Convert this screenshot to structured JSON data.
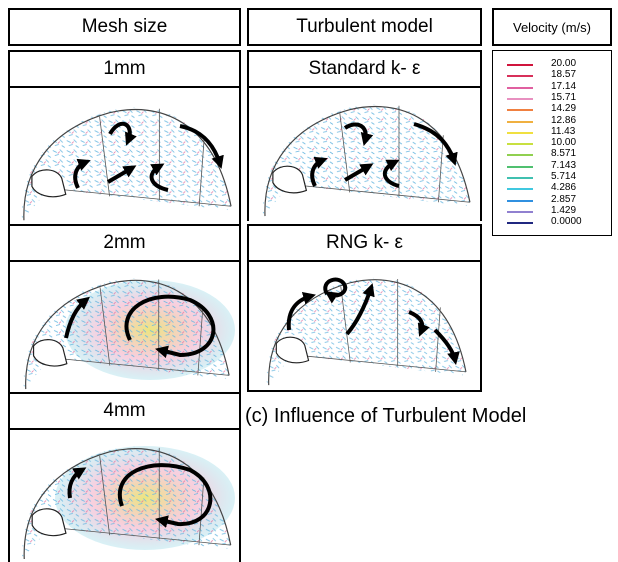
{
  "columns": [
    {
      "header": "Mesh size",
      "panels": [
        {
          "label": "1mm"
        },
        {
          "label": "2mm"
        },
        {
          "label": "4mm"
        }
      ]
    },
    {
      "header": "Turbulent model",
      "panels": [
        {
          "label": "Standard  k- ε"
        },
        {
          "label": "RNG k- ε"
        }
      ]
    }
  ],
  "legend": {
    "title": "Velocity (m/s)",
    "items": [
      {
        "label": "20.00",
        "color": "#d0143c"
      },
      {
        "label": "18.57",
        "color": "#d8305a"
      },
      {
        "label": "17.14",
        "color": "#e060a0"
      },
      {
        "label": "15.71",
        "color": "#e890c0"
      },
      {
        "label": "14.29",
        "color": "#f08040"
      },
      {
        "label": "12.86",
        "color": "#f0b040"
      },
      {
        "label": "11.43",
        "color": "#f0e040"
      },
      {
        "label": "10.00",
        "color": "#c8e040"
      },
      {
        "label": "8.571",
        "color": "#90d050"
      },
      {
        "label": "7.143",
        "color": "#50c070"
      },
      {
        "label": "5.714",
        "color": "#40c0b0"
      },
      {
        "label": "4.286",
        "color": "#40c8e0"
      },
      {
        "label": "2.857",
        "color": "#3090e0"
      },
      {
        "label": "1.429",
        "color": "#9080d0"
      },
      {
        "label": "0.0000",
        "color": "#202880"
      }
    ]
  },
  "caption": "(c) Influence of Turbulent Model"
}
